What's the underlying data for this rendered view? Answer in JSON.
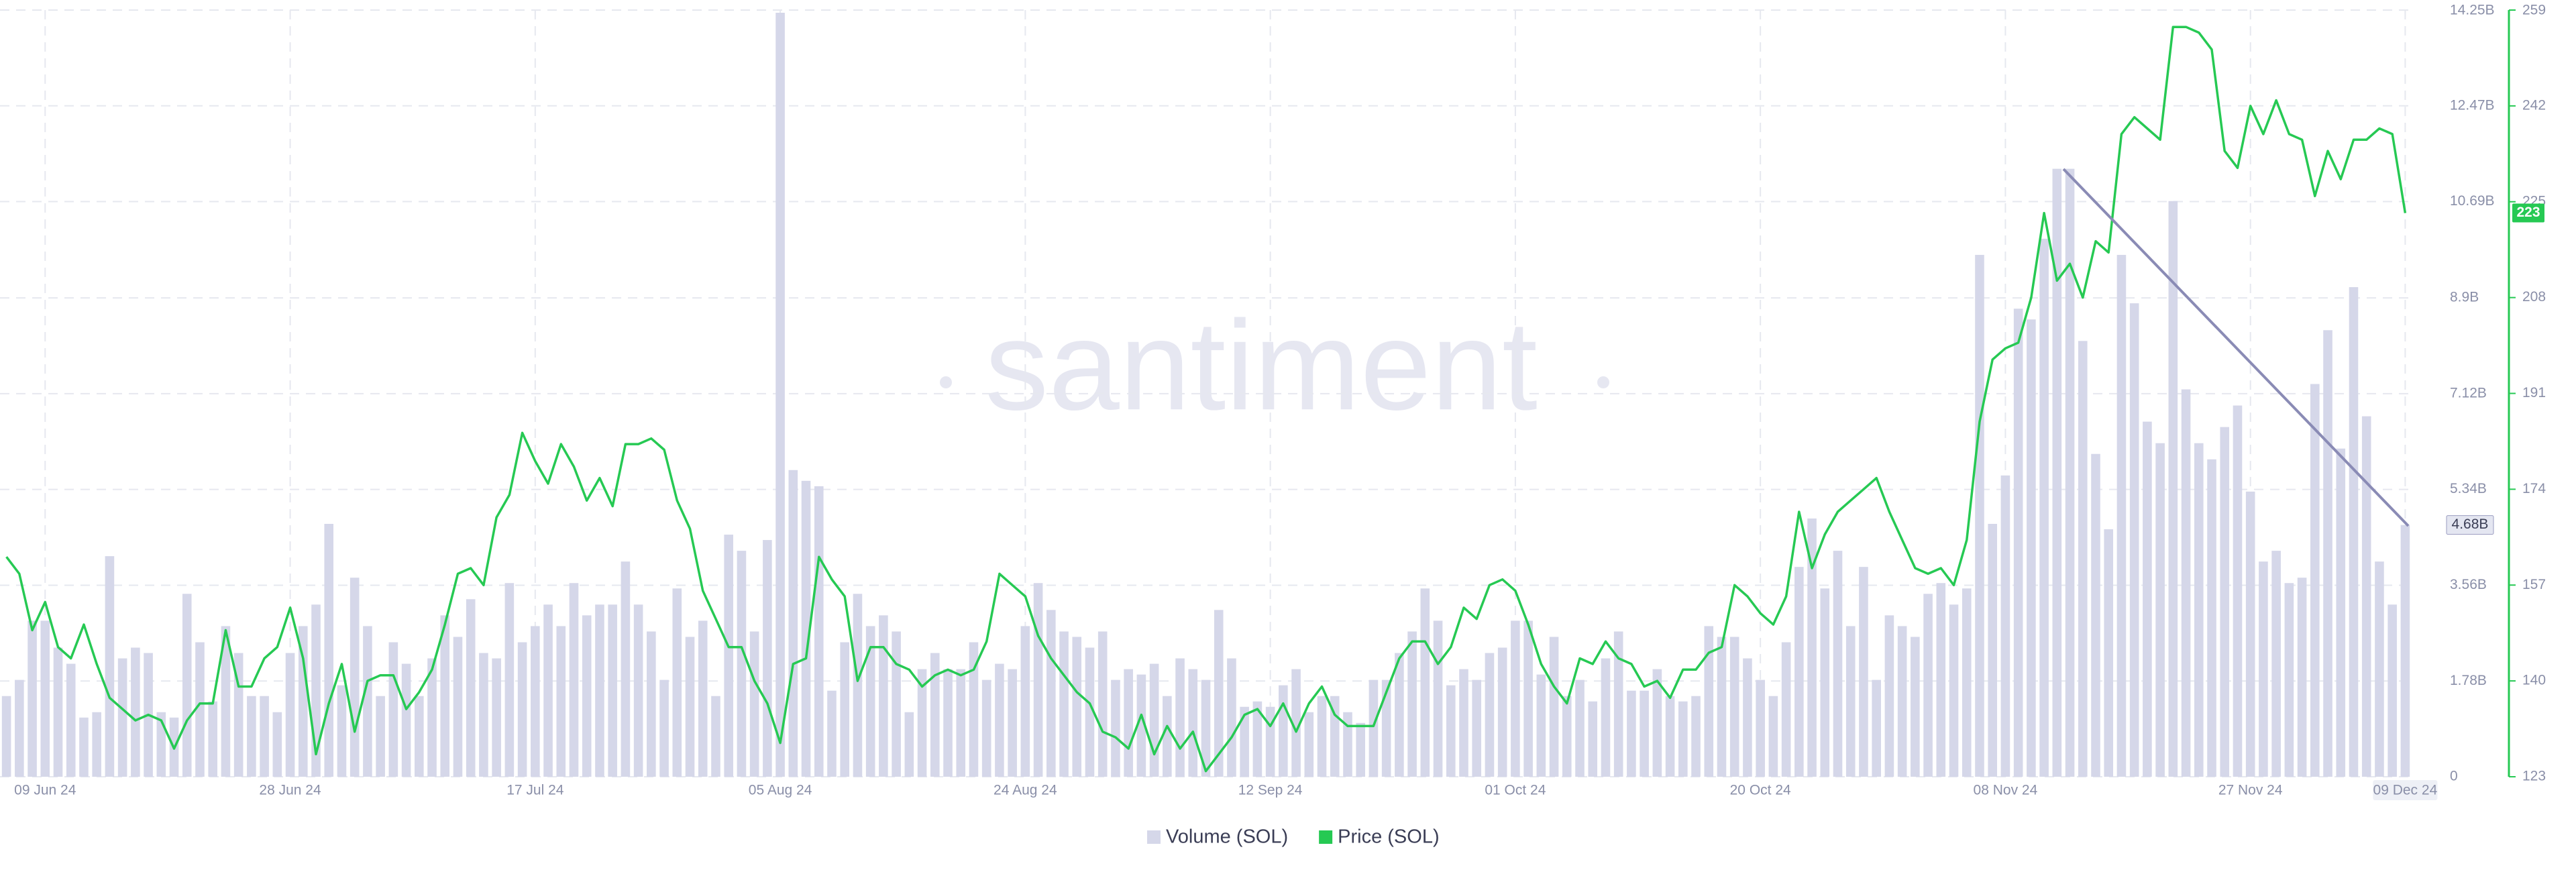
{
  "chart_data": {
    "type": "combo",
    "watermark": "santiment",
    "categories": [
      null,
      null,
      null,
      "09 Jun 24",
      null,
      null,
      null,
      null,
      null,
      null,
      null,
      null,
      null,
      null,
      null,
      null,
      null,
      null,
      null,
      null,
      null,
      null,
      "28 Jun 24",
      null,
      null,
      null,
      null,
      null,
      null,
      null,
      null,
      null,
      null,
      null,
      null,
      null,
      null,
      null,
      null,
      null,
      null,
      "17 Jul 24",
      null,
      null,
      null,
      null,
      null,
      null,
      null,
      null,
      null,
      null,
      null,
      null,
      null,
      null,
      null,
      null,
      null,
      null,
      "05 Aug 24",
      null,
      null,
      null,
      null,
      null,
      null,
      null,
      null,
      null,
      null,
      null,
      null,
      null,
      null,
      null,
      null,
      null,
      null,
      "24 Aug 24",
      null,
      null,
      null,
      null,
      null,
      null,
      null,
      null,
      null,
      null,
      null,
      null,
      null,
      null,
      null,
      null,
      null,
      null,
      "12 Sep 24",
      null,
      null,
      null,
      null,
      null,
      null,
      null,
      null,
      null,
      null,
      null,
      null,
      null,
      null,
      null,
      null,
      null,
      null,
      "01 Oct 24",
      null,
      null,
      null,
      null,
      null,
      null,
      null,
      null,
      null,
      null,
      null,
      null,
      null,
      null,
      null,
      null,
      null,
      null,
      "20 Oct 24",
      null,
      null,
      null,
      null,
      null,
      null,
      null,
      null,
      null,
      null,
      null,
      null,
      null,
      null,
      null,
      null,
      null,
      null,
      "08 Nov 24",
      null,
      null,
      null,
      null,
      null,
      null,
      null,
      null,
      null,
      null,
      null,
      null,
      null,
      null,
      null,
      null,
      null,
      null,
      "27 Nov 24",
      null,
      null,
      null,
      null,
      null,
      null,
      null,
      null,
      null,
      null,
      null,
      "09 Dec 24"
    ],
    "series": [
      {
        "name": "Volume (SOL)",
        "type": "bar",
        "color": "#d5d7e9",
        "axis": "y",
        "current_label": "4.68B",
        "values": [
          1.5,
          1.8,
          2.9,
          2.9,
          2.4,
          2.1,
          1.1,
          1.2,
          4.1,
          2.2,
          2.4,
          2.3,
          1.2,
          1.1,
          3.4,
          2.5,
          1.4,
          2.8,
          2.3,
          1.5,
          1.5,
          1.2,
          2.3,
          2.8,
          3.2,
          4.7,
          1.7,
          3.7,
          2.8,
          1.5,
          2.5,
          2.1,
          1.5,
          2.2,
          3.0,
          2.6,
          3.3,
          2.3,
          2.2,
          3.6,
          2.5,
          2.8,
          3.2,
          2.8,
          3.6,
          3.0,
          3.2,
          3.2,
          4.0,
          3.2,
          2.7,
          1.8,
          3.5,
          2.6,
          2.9,
          1.5,
          4.5,
          4.2,
          2.7,
          4.4,
          14.2,
          5.7,
          5.5,
          5.4,
          1.6,
          2.5,
          3.4,
          2.8,
          3.0,
          2.7,
          1.2,
          2.0,
          2.3,
          2.0,
          2.0,
          2.5,
          1.8,
          2.1,
          2.0,
          2.8,
          3.6,
          3.1,
          2.7,
          2.6,
          2.4,
          2.7,
          1.8,
          2.0,
          1.9,
          2.1,
          1.5,
          2.2,
          2.0,
          1.8,
          3.1,
          2.2,
          1.3,
          1.4,
          1.3,
          1.7,
          2.0,
          1.2,
          1.5,
          1.5,
          1.2,
          1.0,
          1.8,
          1.8,
          2.3,
          2.7,
          3.5,
          2.9,
          1.7,
          2.0,
          1.8,
          2.3,
          2.4,
          2.9,
          2.9,
          1.9,
          2.6,
          1.5,
          1.8,
          1.4,
          2.2,
          2.7,
          1.6,
          1.6,
          2.0,
          1.5,
          1.4,
          1.5,
          2.8,
          2.6,
          2.6,
          2.2,
          1.8,
          1.5,
          2.5,
          3.9,
          4.8,
          3.5,
          4.2,
          2.8,
          3.9,
          1.8,
          3.0,
          2.8,
          2.6,
          3.4,
          3.6,
          3.2,
          3.5,
          9.7,
          4.7,
          5.6,
          8.7,
          8.5,
          10.0,
          11.3,
          11.3,
          8.1,
          6.0,
          4.6,
          9.7,
          8.8,
          6.6,
          6.2,
          10.7,
          7.2,
          6.2,
          5.9,
          6.5,
          6.9,
          5.3,
          4.0,
          4.2,
          3.6,
          3.7,
          7.3,
          8.3,
          6.1,
          9.1,
          6.7,
          4.0,
          3.2,
          4.68
        ]
      },
      {
        "name": "Price (SOL)",
        "type": "line",
        "color": "#26c953",
        "axis": "y2",
        "values": [
          162,
          159,
          149,
          154,
          146,
          144,
          150,
          143,
          137,
          135,
          133,
          134,
          133,
          128,
          133,
          136,
          136,
          149,
          139,
          139,
          144,
          146,
          153,
          144,
          127,
          136,
          143,
          131,
          140,
          141,
          141,
          135,
          138,
          142,
          150,
          159,
          160,
          157,
          169,
          173,
          184,
          179,
          175,
          182,
          178,
          172,
          176,
          171,
          182,
          182,
          183,
          181,
          172,
          167,
          156,
          151,
          146,
          146,
          140,
          136,
          129,
          143,
          144,
          162,
          158,
          155,
          140,
          146,
          146,
          143,
          142,
          139,
          141,
          142,
          141,
          142,
          147,
          159,
          157,
          155,
          148,
          144,
          141,
          138,
          136,
          131,
          130,
          128,
          134,
          127,
          132,
          128,
          131,
          124,
          127,
          130,
          134,
          135,
          132,
          136,
          131,
          136,
          139,
          134,
          132,
          132,
          132,
          138,
          144,
          147,
          147,
          143,
          146,
          153,
          151,
          157,
          158,
          156,
          150,
          143,
          139,
          136,
          144,
          143,
          147,
          144,
          143,
          139,
          140,
          137,
          142,
          142,
          145,
          146,
          157,
          155,
          152,
          150,
          155,
          170,
          160,
          166,
          170,
          172,
          174,
          176,
          170,
          165,
          160,
          159,
          160,
          157,
          165,
          186,
          197,
          199,
          200,
          208,
          223,
          211,
          214,
          208,
          218,
          216,
          237,
          240,
          238,
          236,
          256,
          256,
          255,
          252,
          234,
          231,
          242,
          237,
          243,
          237,
          236,
          226,
          234,
          229,
          236,
          236,
          238,
          237,
          223
        ]
      }
    ],
    "ylim": [
      0,
      14.25
    ],
    "yticks": [
      0,
      {
        "value": 1.78,
        "label": "1.78B"
      },
      {
        "value": 3.56,
        "label": "3.56B"
      },
      {
        "value": 5.34,
        "label": "5.34B"
      },
      {
        "value": 7.12,
        "label": "7.12B"
      },
      {
        "value": 8.9,
        "label": "8.9B"
      },
      {
        "value": 10.69,
        "label": "10.69B"
      },
      {
        "value": 12.47,
        "label": "12.47B"
      },
      {
        "value": 14.25,
        "label": "14.25B"
      }
    ],
    "y2lim": [
      123,
      259
    ],
    "y2ticks": [
      123,
      140,
      157,
      174,
      191,
      208,
      225,
      242,
      259
    ],
    "grid": true,
    "legend": "bottom"
  }
}
